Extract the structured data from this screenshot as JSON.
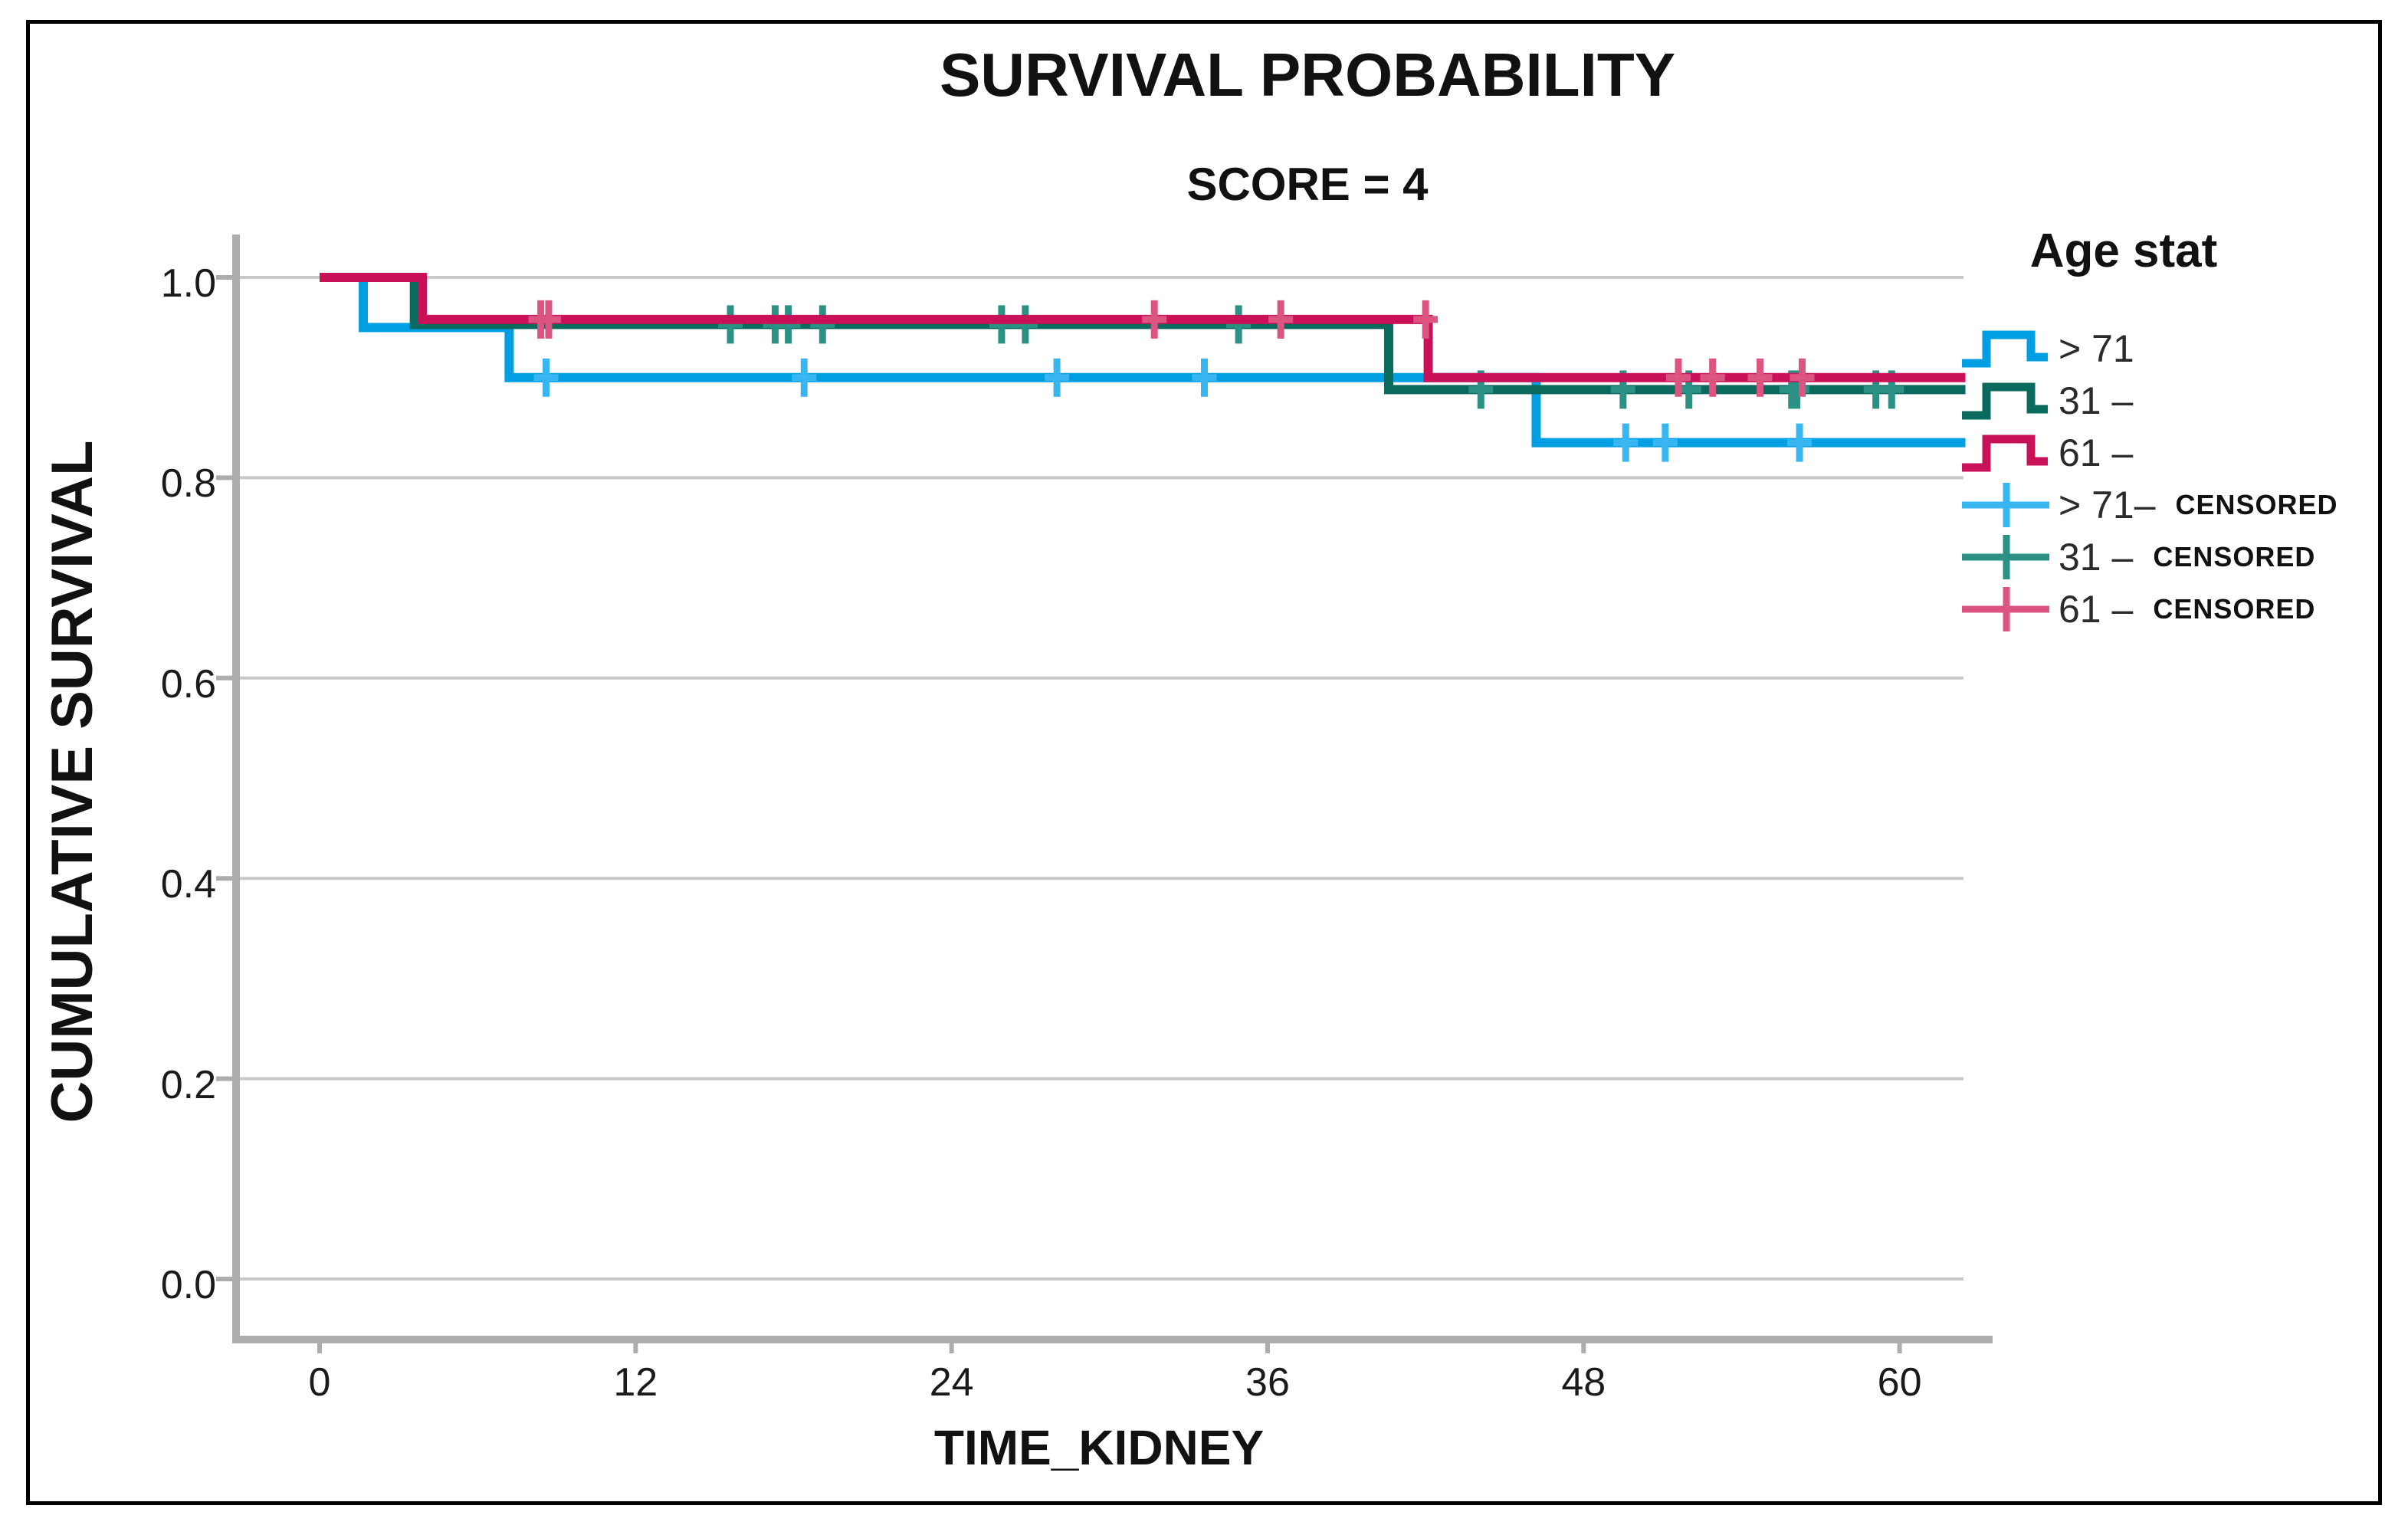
{
  "title": "SURVIVAL PROBABILITY",
  "subtitle": "SCORE = 4",
  "y_axis": {
    "label": "CUMULATIVE SURVIVAL",
    "ticks": [
      "1.0",
      "0.8",
      "0.6",
      "0.4",
      "0.2",
      "0.0"
    ]
  },
  "x_axis": {
    "label": "TIME_KIDNEY",
    "ticks": [
      "0",
      "12",
      "24",
      "36",
      "48",
      "60"
    ]
  },
  "legend": {
    "title": "Age stat",
    "entries": [
      {
        "label": "> 71",
        "suffix": "",
        "type": "step-line",
        "color": "#009FE3"
      },
      {
        "label": "31 –",
        "suffix": "",
        "type": "step-line",
        "color": "#0A6A5E"
      },
      {
        "label": "61 –",
        "suffix": "",
        "type": "step-line",
        "color": "#C91157"
      },
      {
        "label": "> 71–",
        "suffix": "CENSORED",
        "type": "censor-cross",
        "color": "#38B6F1"
      },
      {
        "label": "31 –",
        "suffix": "CENSORED",
        "type": "censor-cross",
        "color": "#2B9185"
      },
      {
        "label": "61 –",
        "suffix": "CENSORED",
        "type": "censor-cross",
        "color": "#DB5580"
      }
    ]
  },
  "colors": {
    "blue_line": "#009FE3",
    "teal_line": "#0A6A5E",
    "crimson_line": "#C91157",
    "blue_censor": "#38B6F1",
    "teal_censor": "#2B9185",
    "pink_censor": "#DB5580",
    "gridline": "#C9C9C9",
    "axis_line": "#ADADAD",
    "text": "#111111",
    "figure_border": "#000000",
    "background": "#FFFFFF"
  },
  "chart_data": {
    "type": "line",
    "subtype": "kaplan-meier-step",
    "title": "SURVIVAL PROBABILITY",
    "subtitle": "SCORE = 4",
    "xlabel": "TIME_KIDNEY",
    "ylabel": "CUMULATIVE SURVIVAL",
    "xlim": [
      -3.1,
      62.5
    ],
    "ylim": [
      -0.06,
      1.04
    ],
    "x_ticks": [
      0,
      12,
      24,
      36,
      48,
      60
    ],
    "y_ticks": [
      1.0,
      0.8,
      0.6,
      0.4,
      0.2,
      0.0
    ],
    "grid": "horizontal",
    "legend_position": "right",
    "series": [
      {
        "name": "> 71",
        "color": "#009FE3",
        "censor_color": "#38B6F1",
        "steps": [
          [
            0,
            1.0
          ],
          [
            1.66,
            0.95
          ],
          [
            7.2,
            0.9
          ],
          [
            46.2,
            0.835
          ],
          [
            62.5,
            0.835
          ]
        ],
        "censored": [
          [
            8.6,
            0.9
          ],
          [
            18.4,
            0.9
          ],
          [
            28.0,
            0.9
          ],
          [
            33.6,
            0.9
          ],
          [
            49.6,
            0.835
          ],
          [
            51.1,
            0.835
          ],
          [
            56.2,
            0.835
          ]
        ]
      },
      {
        "name": "31 –",
        "color": "#0A6A5E",
        "censor_color": "#2B9185",
        "steps": [
          [
            0,
            1.0
          ],
          [
            3.6,
            0.953
          ],
          [
            40.6,
            0.888
          ],
          [
            62.5,
            0.888
          ]
        ],
        "censored": [
          [
            15.6,
            0.953
          ],
          [
            17.3,
            0.953
          ],
          [
            17.8,
            0.953
          ],
          [
            19.1,
            0.953
          ],
          [
            25.9,
            0.953
          ],
          [
            26.8,
            0.953
          ],
          [
            34.9,
            0.953
          ],
          [
            44.1,
            0.888
          ],
          [
            49.5,
            0.888
          ],
          [
            52.0,
            0.888
          ],
          [
            55.9,
            0.888
          ],
          [
            56.1,
            0.888
          ],
          [
            59.1,
            0.888
          ],
          [
            59.7,
            0.888
          ]
        ]
      },
      {
        "name": "61 –",
        "color": "#C91157",
        "censor_color": "#DB5580",
        "steps": [
          [
            0,
            1.0
          ],
          [
            3.9,
            0.958
          ],
          [
            42.1,
            0.9
          ],
          [
            62.5,
            0.9
          ]
        ],
        "censored": [
          [
            8.4,
            0.958
          ],
          [
            8.7,
            0.958
          ],
          [
            31.7,
            0.958
          ],
          [
            36.5,
            0.958
          ],
          [
            42.0,
            0.958
          ],
          [
            51.6,
            0.9
          ],
          [
            52.9,
            0.9
          ],
          [
            54.7,
            0.9
          ],
          [
            56.3,
            0.9
          ]
        ]
      }
    ]
  }
}
